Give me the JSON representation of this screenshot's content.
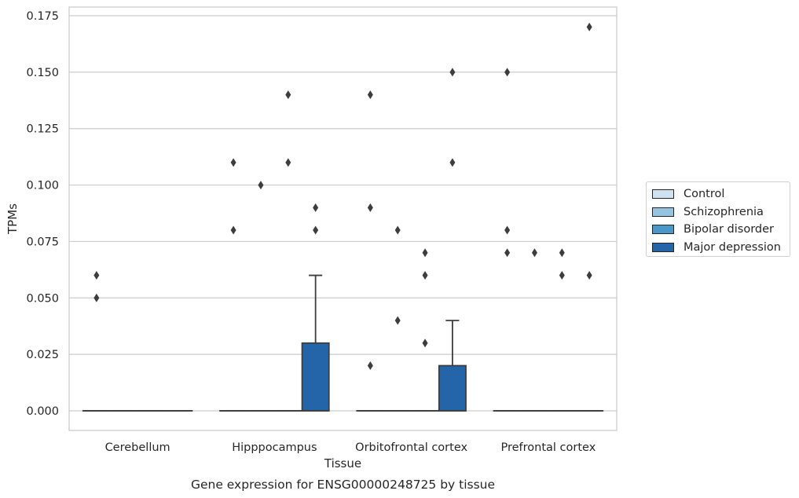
{
  "chart_data": {
    "type": "box",
    "title": "",
    "caption": "Gene expression for ENSG00000248725 by tissue",
    "xlabel": "Tissue",
    "ylabel": "TPMs",
    "ylim": [
      -0.0085,
      0.179
    ],
    "yticks": [
      "0.000",
      "0.025",
      "0.050",
      "0.075",
      "0.100",
      "0.125",
      "0.150",
      "0.175"
    ],
    "categories": [
      "Cerebellum",
      "Hipppocampus",
      "Orbitofrontal cortex",
      "Prefrontal cortex"
    ],
    "grid": true,
    "legend_position": "right",
    "series": [
      {
        "name": "Control",
        "color": "#d0e1f2",
        "boxes": [
          {
            "q1": 0,
            "median": 0,
            "q3": 0,
            "whisker_low": 0,
            "whisker_high": 0,
            "outliers": [
              0.06,
              0.05
            ]
          },
          {
            "q1": 0,
            "median": 0,
            "q3": 0,
            "whisker_low": 0,
            "whisker_high": 0,
            "outliers": [
              0.11,
              0.08
            ]
          },
          {
            "q1": 0,
            "median": 0,
            "q3": 0,
            "whisker_low": 0,
            "whisker_high": 0,
            "outliers": [
              0.14,
              0.09,
              0.02
            ]
          },
          {
            "q1": 0,
            "median": 0,
            "q3": 0,
            "whisker_low": 0,
            "whisker_high": 0,
            "outliers": [
              0.15,
              0.08,
              0.07
            ]
          }
        ]
      },
      {
        "name": "Schizophrenia",
        "color": "#94c4df",
        "boxes": [
          {
            "q1": 0,
            "median": 0,
            "q3": 0,
            "whisker_low": 0,
            "whisker_high": 0,
            "outliers": []
          },
          {
            "q1": 0,
            "median": 0,
            "q3": 0,
            "whisker_low": 0,
            "whisker_high": 0,
            "outliers": [
              0.1
            ]
          },
          {
            "q1": 0,
            "median": 0,
            "q3": 0,
            "whisker_low": 0,
            "whisker_high": 0,
            "outliers": [
              0.08,
              0.04
            ]
          },
          {
            "q1": 0,
            "median": 0,
            "q3": 0,
            "whisker_low": 0,
            "whisker_high": 0,
            "outliers": [
              0.07
            ]
          }
        ]
      },
      {
        "name": "Bipolar disorder",
        "color": "#4a98c9",
        "boxes": [
          {
            "q1": 0,
            "median": 0,
            "q3": 0,
            "whisker_low": 0,
            "whisker_high": 0,
            "outliers": []
          },
          {
            "q1": 0,
            "median": 0,
            "q3": 0,
            "whisker_low": 0,
            "whisker_high": 0,
            "outliers": [
              0.14,
              0.11
            ]
          },
          {
            "q1": 0,
            "median": 0,
            "q3": 0,
            "whisker_low": 0,
            "whisker_high": 0,
            "outliers": [
              0.07,
              0.06,
              0.03
            ]
          },
          {
            "q1": 0,
            "median": 0,
            "q3": 0,
            "whisker_low": 0,
            "whisker_high": 0,
            "outliers": [
              0.07,
              0.06
            ]
          }
        ]
      },
      {
        "name": "Major depression",
        "color": "#2464a8",
        "boxes": [
          {
            "q1": 0,
            "median": 0,
            "q3": 0,
            "whisker_low": 0,
            "whisker_high": 0,
            "outliers": []
          },
          {
            "q1": 0,
            "median": 0,
            "q3": 0.03,
            "whisker_low": 0,
            "whisker_high": 0.06,
            "outliers": [
              0.09,
              0.08
            ]
          },
          {
            "q1": 0,
            "median": 0,
            "q3": 0.02,
            "whisker_low": 0,
            "whisker_high": 0.04,
            "outliers": [
              0.15,
              0.11
            ]
          },
          {
            "q1": 0,
            "median": 0,
            "q3": 0,
            "whisker_low": 0,
            "whisker_high": 0,
            "outliers": [
              0.17,
              0.06
            ]
          }
        ]
      }
    ]
  }
}
